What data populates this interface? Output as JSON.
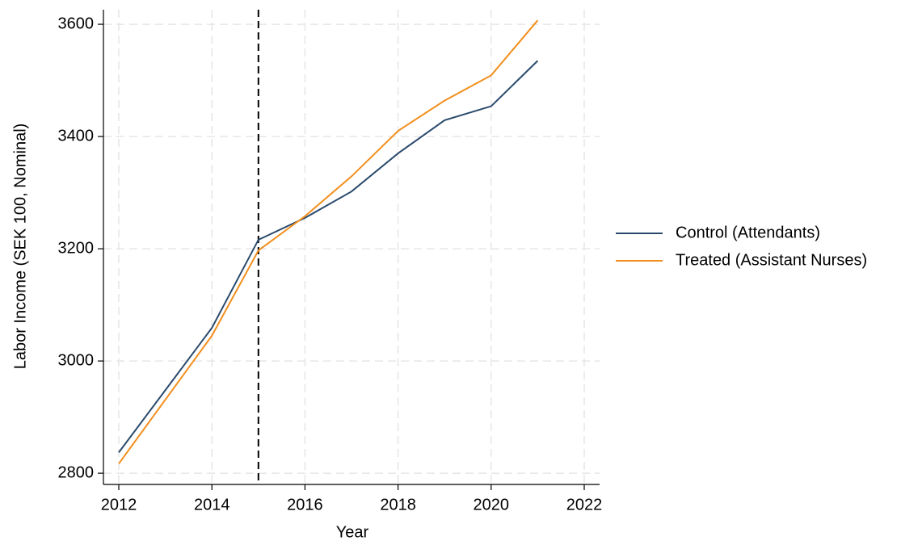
{
  "chart_data": {
    "type": "line",
    "x_label": "Year",
    "y_label": "Labor Income (SEK 100, Nominal)",
    "x": [
      2012,
      2013,
      2014,
      2015,
      2016,
      2017,
      2018,
      2019,
      2020,
      2021
    ],
    "series": [
      {
        "name": "Control (Attendants)",
        "color": "#2a4a6c",
        "values": [
          2837,
          2948,
          3059,
          3216,
          3255,
          3302,
          3370,
          3429,
          3454,
          3535
        ]
      },
      {
        "name": "Treated (Assistant Nurses)",
        "color": "#f28e1c",
        "values": [
          2817,
          2931,
          3045,
          3197,
          3258,
          3329,
          3410,
          3464,
          3509,
          3607
        ]
      }
    ],
    "xlim": [
      2011.67,
      2022.33
    ],
    "ylim": [
      2780,
      3626
    ],
    "xticks": [
      2012,
      2014,
      2016,
      2018,
      2020,
      2022
    ],
    "yticks": [
      2800,
      3000,
      3200,
      3400,
      3600
    ],
    "vline": 2015,
    "grid": true,
    "legend": "right"
  }
}
